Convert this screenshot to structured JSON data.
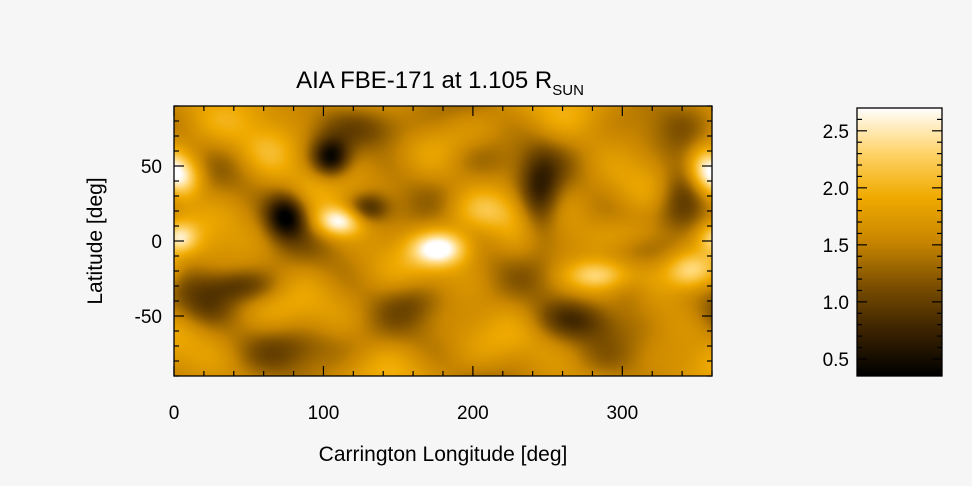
{
  "chart_data": [
    {
      "type": "heatmap",
      "title": {
        "main": "AIA FBE-171 at 1.105 R",
        "subscript": "SUN"
      },
      "xlabel": "Carrington Longitude [deg]",
      "ylabel": "Latitude [deg]",
      "xlim": [
        0,
        360
      ],
      "ylim": [
        -90,
        90
      ],
      "x_ticks": [
        0,
        100,
        200,
        300
      ],
      "x_tick_labels": [
        "0",
        "100",
        "200",
        "300"
      ],
      "y_ticks": [
        50,
        0,
        -50
      ],
      "y_tick_labels": [
        "50",
        "0",
        "-50"
      ],
      "colormap": [
        "#000000",
        "#3a2200",
        "#7a4e00",
        "#c88600",
        "#f0aa00",
        "#ffd46a",
        "#ffffff"
      ],
      "value_range": [
        0.35,
        2.7
      ],
      "background_level": 1.6,
      "features": [
        {
          "lon": 75,
          "lat": 17,
          "value": 0.35,
          "sx": 10,
          "sy": 11
        },
        {
          "lon": 105,
          "lat": 55,
          "value": 0.45,
          "sx": 9,
          "sy": 9
        },
        {
          "lon": 130,
          "lat": 22,
          "value": 0.8,
          "sx": 10,
          "sy": 7
        },
        {
          "lon": 245,
          "lat": 28,
          "value": 0.7,
          "sx": 10,
          "sy": 20
        },
        {
          "lon": 340,
          "lat": 32,
          "value": 0.9,
          "sx": 12,
          "sy": 22
        },
        {
          "lon": 270,
          "lat": -52,
          "value": 0.9,
          "sx": 22,
          "sy": 10
        },
        {
          "lon": 45,
          "lat": -30,
          "value": 1.0,
          "sx": 18,
          "sy": 8
        },
        {
          "lon": 140,
          "lat": 75,
          "value": 1.2,
          "sx": 20,
          "sy": 10
        },
        {
          "lon": 200,
          "lat": 55,
          "value": 1.3,
          "sx": 18,
          "sy": 10
        },
        {
          "lon": 80,
          "lat": -70,
          "value": 1.3,
          "sx": 30,
          "sy": 10
        },
        {
          "lon": 160,
          "lat": -40,
          "value": 1.3,
          "sx": 15,
          "sy": 10
        },
        {
          "lon": 305,
          "lat": -35,
          "value": 1.2,
          "sx": 12,
          "sy": 10
        },
        {
          "lon": 20,
          "lat": -45,
          "value": 1.2,
          "sx": 14,
          "sy": 10
        },
        {
          "lon": 5,
          "lat": 42,
          "value": 2.6,
          "sx": 10,
          "sy": 10
        },
        {
          "lon": 355,
          "lat": 50,
          "value": 2.3,
          "sx": 8,
          "sy": 10
        },
        {
          "lon": 110,
          "lat": 13,
          "value": 2.7,
          "sx": 11,
          "sy": 7
        },
        {
          "lon": 178,
          "lat": -5,
          "value": 2.7,
          "sx": 13,
          "sy": 8
        },
        {
          "lon": 345,
          "lat": -20,
          "value": 2.5,
          "sx": 12,
          "sy": 9
        },
        {
          "lon": 283,
          "lat": -23,
          "value": 2.3,
          "sx": 14,
          "sy": 7
        },
        {
          "lon": 3,
          "lat": 2,
          "value": 2.3,
          "sx": 8,
          "sy": 7
        },
        {
          "lon": 205,
          "lat": 20,
          "value": 2.1,
          "sx": 18,
          "sy": 10
        },
        {
          "lon": 310,
          "lat": 5,
          "value": 2.0,
          "sx": 18,
          "sy": 8
        },
        {
          "lon": 65,
          "lat": 60,
          "value": 2.0,
          "sx": 15,
          "sy": 12
        }
      ]
    },
    {
      "type": "colorbar",
      "ticks": [
        0.5,
        1.0,
        1.5,
        2.0,
        2.5
      ],
      "tick_labels": [
        "0.5",
        "1.0",
        "1.5",
        "2.0",
        "2.5"
      ],
      "range": [
        0.35,
        2.7
      ]
    }
  ]
}
